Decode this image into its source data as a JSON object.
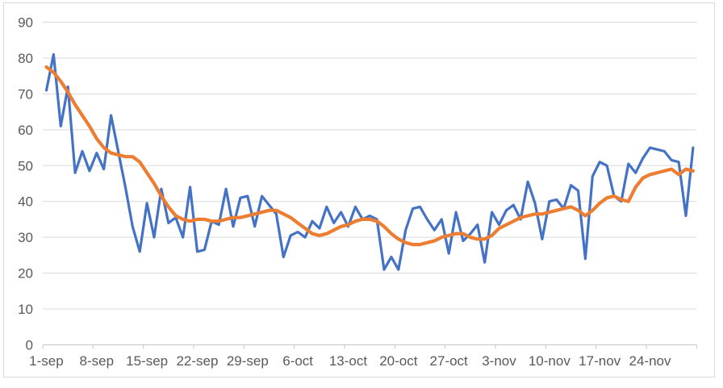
{
  "window": {
    "background": "#ffffff",
    "border_color": "#d9d9d9"
  },
  "chart_data": {
    "type": "line",
    "title": "",
    "legend": "none",
    "grid": {
      "horizontal": true,
      "vertical": false,
      "color": "#d9d9d9"
    },
    "axis_color": "#c6c6c6",
    "text_color": "#595959",
    "y_axis": {
      "min": 0,
      "max": 90,
      "ticks": [
        0,
        10,
        20,
        30,
        40,
        50,
        60,
        70,
        80,
        90
      ]
    },
    "x_axis": {
      "tick_labels": [
        "1-sep",
        "8-sep",
        "15-sep",
        "22-sep",
        "29-sep",
        "6-oct",
        "13-oct",
        "20-oct",
        "27-oct",
        "3-nov",
        "10-nov",
        "17-nov",
        "24-nov"
      ],
      "label_interval_points": 7
    },
    "series": [
      {
        "name": "daily-values",
        "color": "#4472C4",
        "width": 3.2,
        "values": [
          71,
          81,
          61,
          72,
          48,
          54,
          48.5,
          53.5,
          49,
          64,
          54,
          44,
          33,
          26,
          39.5,
          30,
          43.5,
          34,
          35.5,
          30,
          44,
          26,
          26.5,
          34.5,
          33.5,
          43.5,
          33,
          41,
          41.5,
          33,
          41.5,
          39,
          36.5,
          24.5,
          30.5,
          31.5,
          30,
          34.5,
          32.5,
          38.5,
          34,
          37,
          33,
          38.5,
          35,
          36,
          35,
          21,
          24.5,
          21,
          32,
          38,
          38.5,
          35,
          32,
          35,
          25.5,
          37,
          29,
          31,
          33.5,
          23,
          37,
          33.5,
          37.5,
          39,
          35,
          45.5,
          39.5,
          29.5,
          40,
          40.5,
          38,
          44.5,
          43,
          24,
          47,
          51,
          50,
          41.5,
          40,
          50.5,
          48,
          52,
          55,
          54.5,
          54,
          51.5,
          51,
          36,
          55
        ]
      },
      {
        "name": "smoothed-trend",
        "color": "#ED7D31",
        "width": 4.2,
        "values": [
          77.5,
          76,
          73.5,
          70.5,
          67,
          64,
          61,
          57.5,
          55,
          53.5,
          53,
          52.5,
          52.5,
          51,
          48,
          45,
          41.5,
          38.5,
          36,
          35,
          34.5,
          35,
          35,
          34.5,
          34.5,
          35,
          35.5,
          35.5,
          36,
          36.5,
          37,
          37.5,
          37.5,
          36.5,
          35.5,
          34,
          32.5,
          31,
          30.5,
          31,
          32,
          33,
          33.5,
          34.5,
          35,
          35,
          34.5,
          33,
          31,
          29.5,
          28.5,
          28,
          28,
          28.5,
          29,
          30,
          30.5,
          31,
          31,
          30,
          29.5,
          29.5,
          30.5,
          32.5,
          33.5,
          34.5,
          35.5,
          36,
          36.5,
          36.5,
          37,
          37.5,
          38,
          38.5,
          37.5,
          36,
          37.5,
          39.5,
          41,
          41.5,
          40.5,
          40,
          44,
          46.5,
          47.5,
          48,
          48.5,
          49,
          47.5,
          49,
          48.5
        ]
      }
    ]
  }
}
